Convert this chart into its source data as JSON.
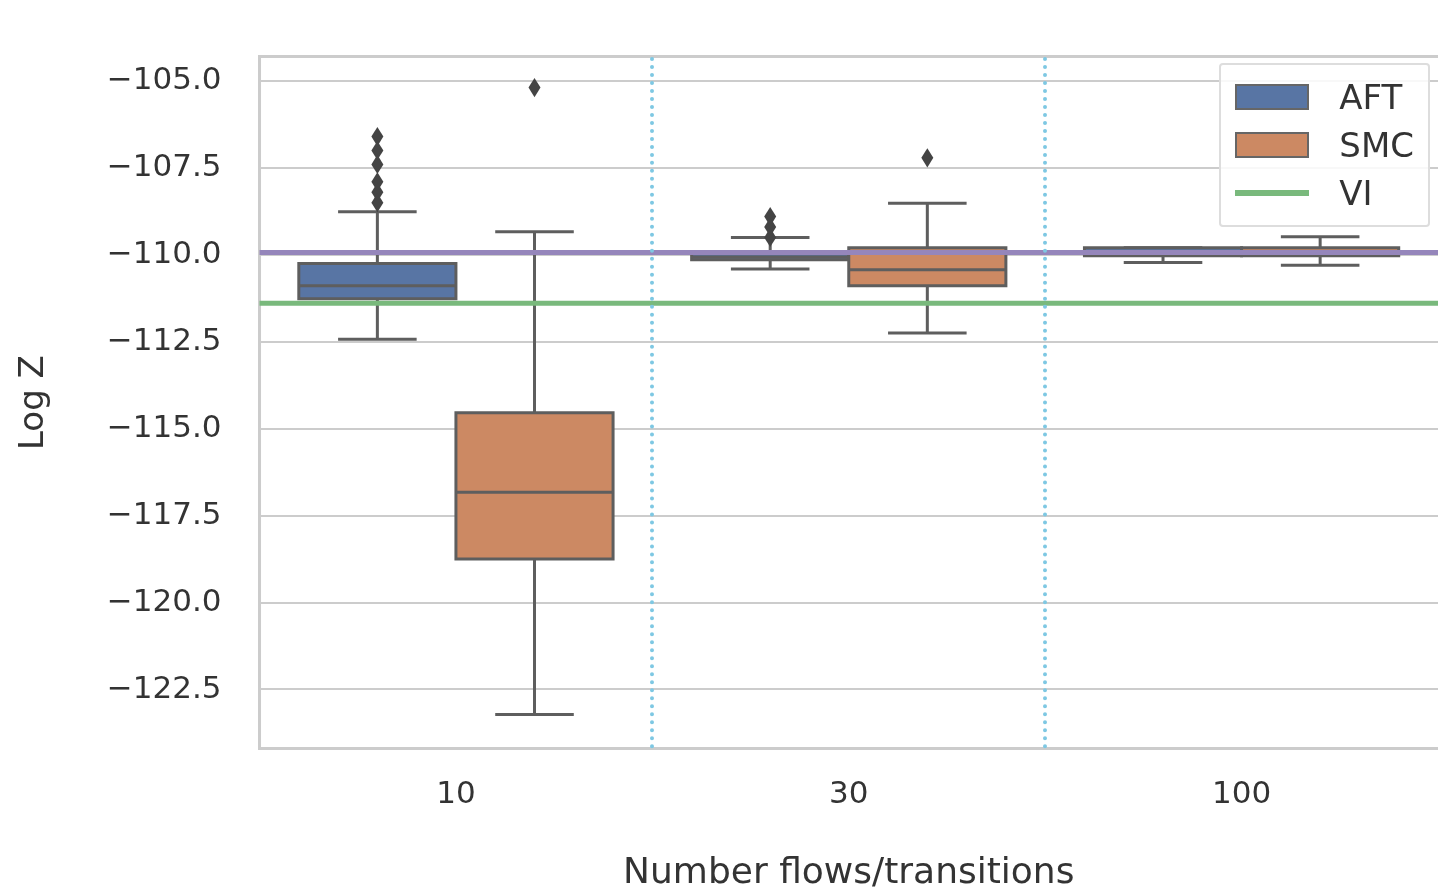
{
  "chart_data": {
    "type": "box",
    "xlabel": "Number flows/transitions",
    "ylabel": "Log Z",
    "categories": [
      "10",
      "30",
      "100"
    ],
    "series": [
      {
        "name": "AFT",
        "color": "#5875a4",
        "boxes": [
          {
            "low": -112.43,
            "q1": -111.26,
            "median": -110.89,
            "q3": -110.25,
            "high": -108.76,
            "outliers": [
              -106.6,
              -107.0,
              -107.4,
              -107.9,
              -108.2,
              -108.5
            ]
          },
          {
            "low": -110.41,
            "q1": -110.14,
            "median": -110.06,
            "q3": -109.95,
            "high": -109.5,
            "outliers": [
              -108.9,
              -109.2,
              -109.5
            ]
          },
          {
            "low": -110.22,
            "q1": -110.03,
            "median": -109.95,
            "q3": -109.8,
            "high": -109.8
          }
        ]
      },
      {
        "name": "SMC",
        "color": "#cc8963",
        "boxes": [
          {
            "low": -123.22,
            "q1": -118.75,
            "median": -116.83,
            "q3": -114.54,
            "high": -109.34,
            "outliers": [
              -105.19
            ]
          },
          {
            "low": -112.25,
            "q1": -110.89,
            "median": -110.43,
            "q3": -109.8,
            "high": -108.52,
            "outliers": [
              -107.21
            ]
          },
          {
            "low": -110.3,
            "q1": -110.03,
            "median": -109.93,
            "q3": -109.8,
            "high": -109.48
          }
        ]
      }
    ],
    "ref_lines": [
      {
        "axis": "y",
        "value": -109.93,
        "color": "#9586bb"
      },
      {
        "axis": "y",
        "value": -111.39,
        "label": "VI",
        "color": "#79b97c"
      }
    ],
    "ylim": [
      -124.2,
      -104.3
    ],
    "yticks": [
      {
        "value": -105,
        "label": "−105.0"
      },
      {
        "value": -107.5,
        "label": "−107.5"
      },
      {
        "value": -110,
        "label": "−110.0"
      },
      {
        "value": -112.5,
        "label": "−112.5"
      },
      {
        "value": -115,
        "label": "−115.0"
      },
      {
        "value": -117.5,
        "label": "−117.5"
      },
      {
        "value": -120,
        "label": "−120.0"
      },
      {
        "value": -122.5,
        "label": "−122.5"
      }
    ],
    "grid": "y",
    "legend": "top right",
    "marker": "diamond"
  }
}
